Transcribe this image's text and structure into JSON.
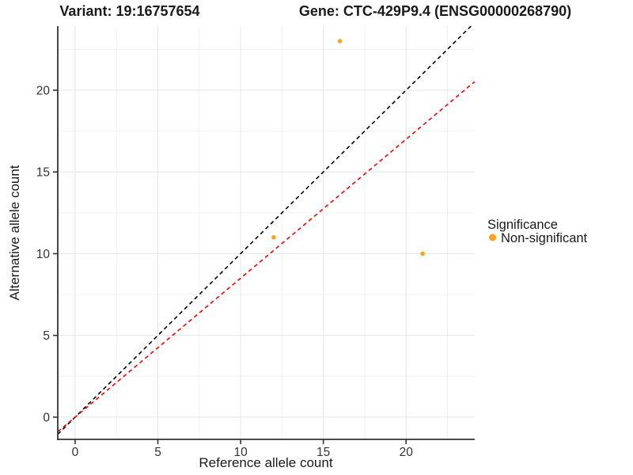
{
  "chart_data": {
    "type": "scatter",
    "title": "Variant: 19:16757654    Gene: CTC-429P9.4 (ENSG00000268790)",
    "title_variant": "Variant: 19:16757654",
    "title_gene": "Gene: CTC-429P9.4 (ENSG00000268790)",
    "xlabel": "Reference allele count",
    "ylabel": "Alternative allele count",
    "xlim": [
      -1.05,
      24.15
    ],
    "ylim": [
      -1.36,
      23.92
    ],
    "xticks": [
      0,
      5,
      10,
      15,
      20
    ],
    "yticks": [
      0,
      5,
      10,
      15,
      20
    ],
    "xticks_minor": [
      2.5,
      7.5,
      12.5,
      17.5,
      22.5
    ],
    "yticks_minor": [
      2.5,
      7.5,
      12.5,
      17.5,
      22.5
    ],
    "grid": true,
    "legend_position": "right",
    "series": [
      {
        "name": "Non-significant",
        "color": "#FAA21C",
        "points": [
          {
            "x": 16,
            "y": 23
          },
          {
            "x": 12,
            "y": 11
          },
          {
            "x": 21,
            "y": 10
          }
        ]
      }
    ],
    "lines": [
      {
        "name": "identity",
        "slope": 1,
        "intercept": 0,
        "color": "#000000",
        "style": "dashed"
      },
      {
        "name": "expected-ratio",
        "slope": 0.85,
        "intercept": 0,
        "color": "#FF0000",
        "style": "dashed"
      }
    ],
    "legend": {
      "title": "Significance",
      "items": [
        {
          "label": "Non-significant",
          "color": "#FAA21C"
        }
      ]
    }
  },
  "colors": {
    "background": "#FFFFFF",
    "grid_major": "#E4E4E4",
    "grid_minor": "#F2F2F2",
    "axis_line": "#333333",
    "tick_text": "#333333",
    "point": "#FAA21C",
    "identity_line": "#000000",
    "fit_line": "#FF0000"
  }
}
